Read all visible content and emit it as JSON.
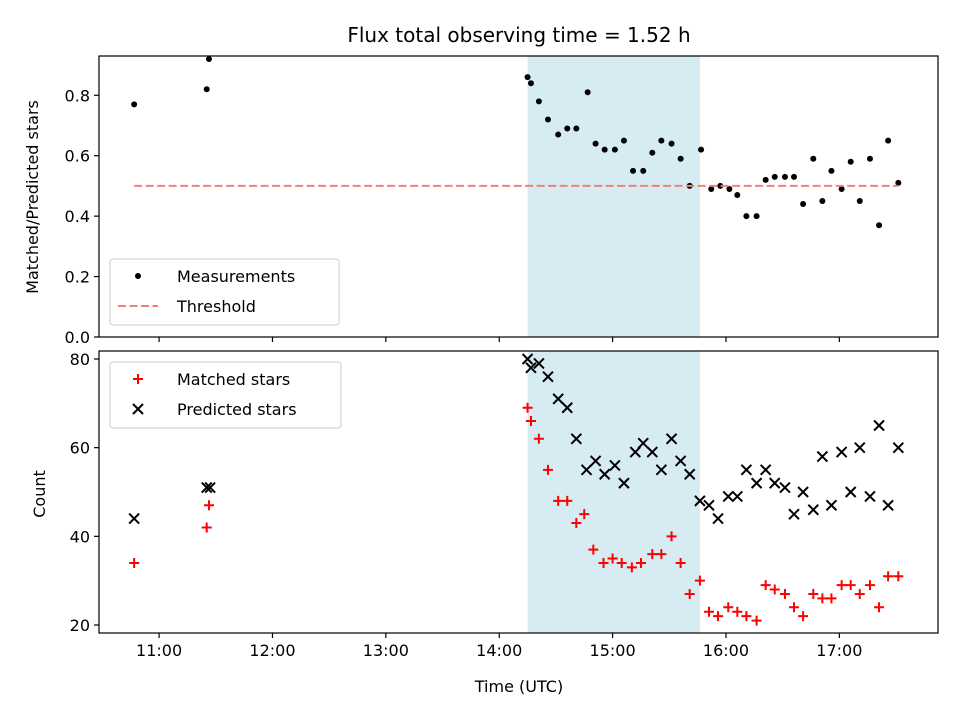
{
  "chart_data": {
    "title": "Flux total observing time = 1.52 h",
    "xlabel": "Time (UTC)",
    "x_units": "hours UTC",
    "xlim": [
      10.47,
      17.87
    ],
    "xticks": [
      {
        "value": 11,
        "label": "11:00"
      },
      {
        "value": 12,
        "label": "12:00"
      },
      {
        "value": 13,
        "label": "13:00"
      },
      {
        "value": 14,
        "label": "14:00"
      },
      {
        "value": 15,
        "label": "15:00"
      },
      {
        "value": 16,
        "label": "16:00"
      },
      {
        "value": 17,
        "label": "17:00"
      }
    ],
    "highlight_span": {
      "x_start": 14.25,
      "x_end": 15.77,
      "color": "#add8e6"
    },
    "panels": [
      {
        "type": "scatter",
        "ylabel": "Matched/Predicted stars",
        "ylim": [
          0.0,
          0.93
        ],
        "yticks": [
          {
            "value": 0.0,
            "label": "0.0"
          },
          {
            "value": 0.2,
            "label": "0.2"
          },
          {
            "value": 0.4,
            "label": "0.4"
          },
          {
            "value": 0.6,
            "label": "0.6"
          },
          {
            "value": 0.8,
            "label": "0.8"
          }
        ],
        "legend_position": "lower-left",
        "series": [
          {
            "name": "Measurements",
            "marker": "dot",
            "color": "#000000",
            "points": [
              [
                10.78,
                0.77
              ],
              [
                11.42,
                0.82
              ],
              [
                11.44,
                0.92
              ],
              [
                14.25,
                0.86
              ],
              [
                14.28,
                0.84
              ],
              [
                14.35,
                0.78
              ],
              [
                14.43,
                0.72
              ],
              [
                14.52,
                0.67
              ],
              [
                14.6,
                0.69
              ],
              [
                14.68,
                0.69
              ],
              [
                14.78,
                0.81
              ],
              [
                14.85,
                0.64
              ],
              [
                14.93,
                0.62
              ],
              [
                15.02,
                0.62
              ],
              [
                15.1,
                0.65
              ],
              [
                15.18,
                0.55
              ],
              [
                15.27,
                0.55
              ],
              [
                15.35,
                0.61
              ],
              [
                15.43,
                0.65
              ],
              [
                15.52,
                0.64
              ],
              [
                15.6,
                0.59
              ],
              [
                15.68,
                0.5
              ],
              [
                15.78,
                0.62
              ],
              [
                15.87,
                0.49
              ],
              [
                15.95,
                0.5
              ],
              [
                16.03,
                0.49
              ],
              [
                16.1,
                0.47
              ],
              [
                16.18,
                0.4
              ],
              [
                16.27,
                0.4
              ],
              [
                16.35,
                0.52
              ],
              [
                16.43,
                0.53
              ],
              [
                16.52,
                0.53
              ],
              [
                16.6,
                0.53
              ],
              [
                16.68,
                0.44
              ],
              [
                16.77,
                0.59
              ],
              [
                16.85,
                0.45
              ],
              [
                16.93,
                0.55
              ],
              [
                17.02,
                0.49
              ],
              [
                17.1,
                0.58
              ],
              [
                17.18,
                0.45
              ],
              [
                17.27,
                0.59
              ],
              [
                17.35,
                0.37
              ],
              [
                17.43,
                0.65
              ],
              [
                17.52,
                0.51
              ]
            ]
          },
          {
            "name": "Threshold",
            "marker": "dashed-line",
            "color": "#f08080",
            "points": [
              [
                10.78,
                0.5
              ],
              [
                17.52,
                0.5
              ]
            ]
          }
        ]
      },
      {
        "type": "scatter",
        "ylabel": "Count",
        "ylim": [
          18.2,
          81.8
        ],
        "yticks": [
          {
            "value": 20,
            "label": "20"
          },
          {
            "value": 40,
            "label": "40"
          },
          {
            "value": 60,
            "label": "60"
          },
          {
            "value": 80,
            "label": "80"
          }
        ],
        "legend_position": "upper-left",
        "series": [
          {
            "name": "Matched stars",
            "marker": "plus",
            "color": "#ff0000",
            "points": [
              [
                10.78,
                34
              ],
              [
                11.42,
                42
              ],
              [
                11.44,
                47
              ],
              [
                14.25,
                69
              ],
              [
                14.28,
                66
              ],
              [
                14.35,
                62
              ],
              [
                14.43,
                55
              ],
              [
                14.52,
                48
              ],
              [
                14.6,
                48
              ],
              [
                14.68,
                43
              ],
              [
                14.75,
                45
              ],
              [
                14.83,
                37
              ],
              [
                14.92,
                34
              ],
              [
                15.0,
                35
              ],
              [
                15.08,
                34
              ],
              [
                15.17,
                33
              ],
              [
                15.25,
                34
              ],
              [
                15.35,
                36
              ],
              [
                15.43,
                36
              ],
              [
                15.52,
                40
              ],
              [
                15.6,
                34
              ],
              [
                15.68,
                27
              ],
              [
                15.77,
                30
              ],
              [
                15.85,
                23
              ],
              [
                15.93,
                22
              ],
              [
                16.02,
                24
              ],
              [
                16.1,
                23
              ],
              [
                16.18,
                22
              ],
              [
                16.27,
                21
              ],
              [
                16.35,
                29
              ],
              [
                16.43,
                28
              ],
              [
                16.52,
                27
              ],
              [
                16.6,
                24
              ],
              [
                16.68,
                22
              ],
              [
                16.77,
                27
              ],
              [
                16.85,
                26
              ],
              [
                16.93,
                26
              ],
              [
                17.02,
                29
              ],
              [
                17.1,
                29
              ],
              [
                17.18,
                27
              ],
              [
                17.27,
                29
              ],
              [
                17.35,
                24
              ],
              [
                17.43,
                31
              ],
              [
                17.52,
                31
              ]
            ]
          },
          {
            "name": "Predicted stars",
            "marker": "x",
            "color": "#000000",
            "points": [
              [
                10.78,
                44
              ],
              [
                11.42,
                51
              ],
              [
                11.45,
                51
              ],
              [
                14.25,
                80
              ],
              [
                14.28,
                78
              ],
              [
                14.35,
                79
              ],
              [
                14.43,
                76
              ],
              [
                14.52,
                71
              ],
              [
                14.6,
                69
              ],
              [
                14.68,
                62
              ],
              [
                14.77,
                55
              ],
              [
                14.85,
                57
              ],
              [
                14.93,
                54
              ],
              [
                15.02,
                56
              ],
              [
                15.1,
                52
              ],
              [
                15.2,
                59
              ],
              [
                15.27,
                61
              ],
              [
                15.35,
                59
              ],
              [
                15.43,
                55
              ],
              [
                15.52,
                62
              ],
              [
                15.6,
                57
              ],
              [
                15.68,
                54
              ],
              [
                15.77,
                48
              ],
              [
                15.85,
                47
              ],
              [
                15.93,
                44
              ],
              [
                16.02,
                49
              ],
              [
                16.1,
                49
              ],
              [
                16.18,
                55
              ],
              [
                16.27,
                52
              ],
              [
                16.35,
                55
              ],
              [
                16.43,
                52
              ],
              [
                16.52,
                51
              ],
              [
                16.6,
                45
              ],
              [
                16.68,
                50
              ],
              [
                16.77,
                46
              ],
              [
                16.85,
                58
              ],
              [
                16.93,
                47
              ],
              [
                17.02,
                59
              ],
              [
                17.1,
                50
              ],
              [
                17.18,
                60
              ],
              [
                17.27,
                49
              ],
              [
                17.35,
                65
              ],
              [
                17.43,
                47
              ],
              [
                17.52,
                60
              ]
            ]
          }
        ]
      }
    ]
  }
}
